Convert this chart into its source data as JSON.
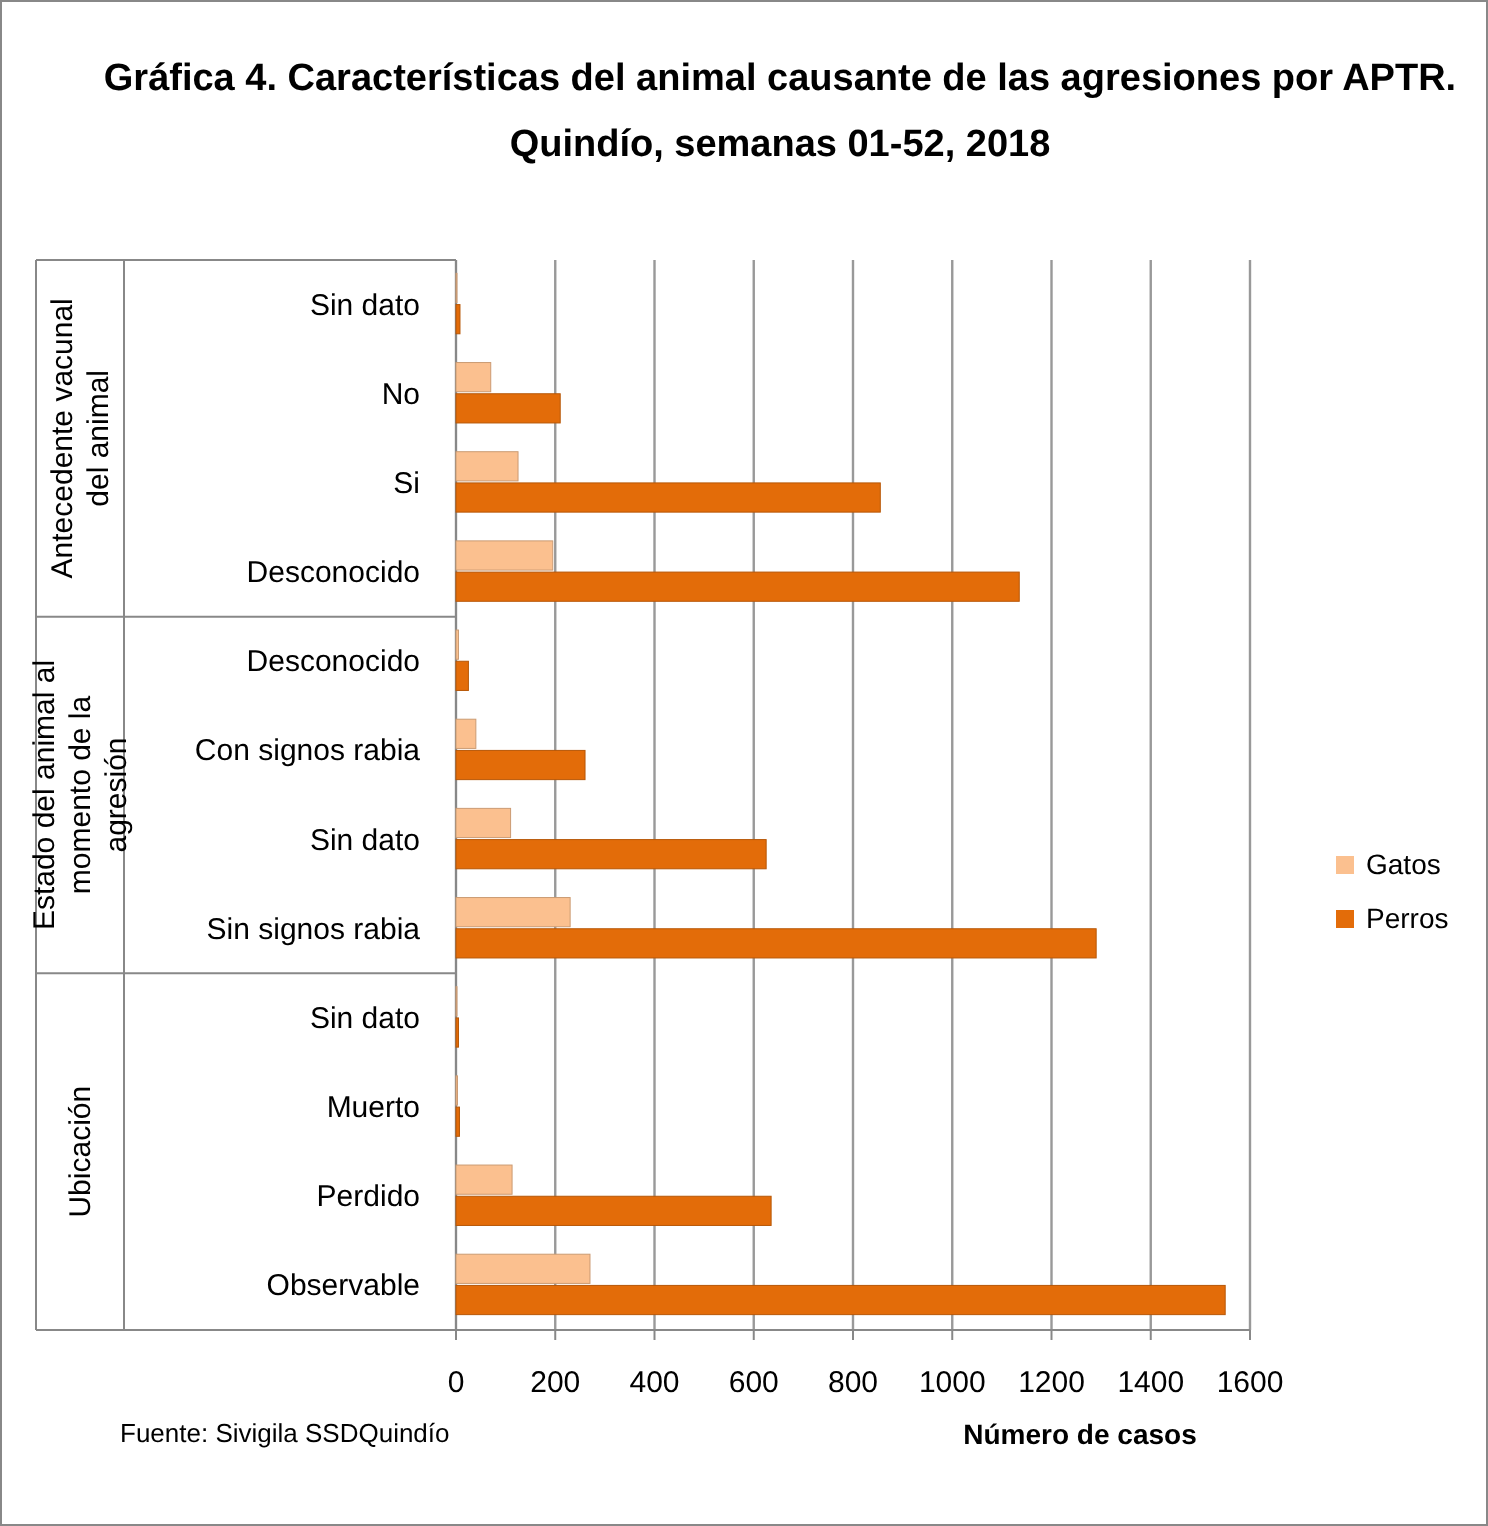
{
  "chart_data": {
    "type": "bar",
    "orientation": "horizontal",
    "title": "Gráfica 4. Características del animal causante de las agresiones por APTR. Quindío, semanas 01-52, 2018",
    "xlabel": "Número de casos",
    "categories": [
      "Sin dato",
      "No",
      "Si",
      "Desconocido",
      "Desconocido",
      "Con signos rabia",
      "Sin dato",
      "Sin signos rabia",
      "Sin dato",
      "Muerto",
      "Perdido",
      "Observable"
    ],
    "series": [
      {
        "name": "Gatos",
        "color": "#fbc08f",
        "values": [
          2,
          70,
          125,
          195,
          5,
          40,
          110,
          230,
          2,
          3,
          113,
          270
        ]
      },
      {
        "name": "Perros",
        "color": "#e36c09",
        "values": [
          8,
          210,
          855,
          1135,
          25,
          260,
          625,
          1290,
          5,
          7,
          635,
          1550
        ]
      }
    ],
    "xlim": [
      0,
      1600
    ],
    "xticks": [
      0,
      200,
      400,
      600,
      800,
      1000,
      1200,
      1400,
      1600
    ],
    "grid": "x",
    "legend": "right",
    "annotations": [
      "Antecedente vacunal del animal",
      "Estado del animal al momento de la agresión",
      "Ubicación",
      "Fuente: Sivigila SSDQuindío"
    ]
  }
}
